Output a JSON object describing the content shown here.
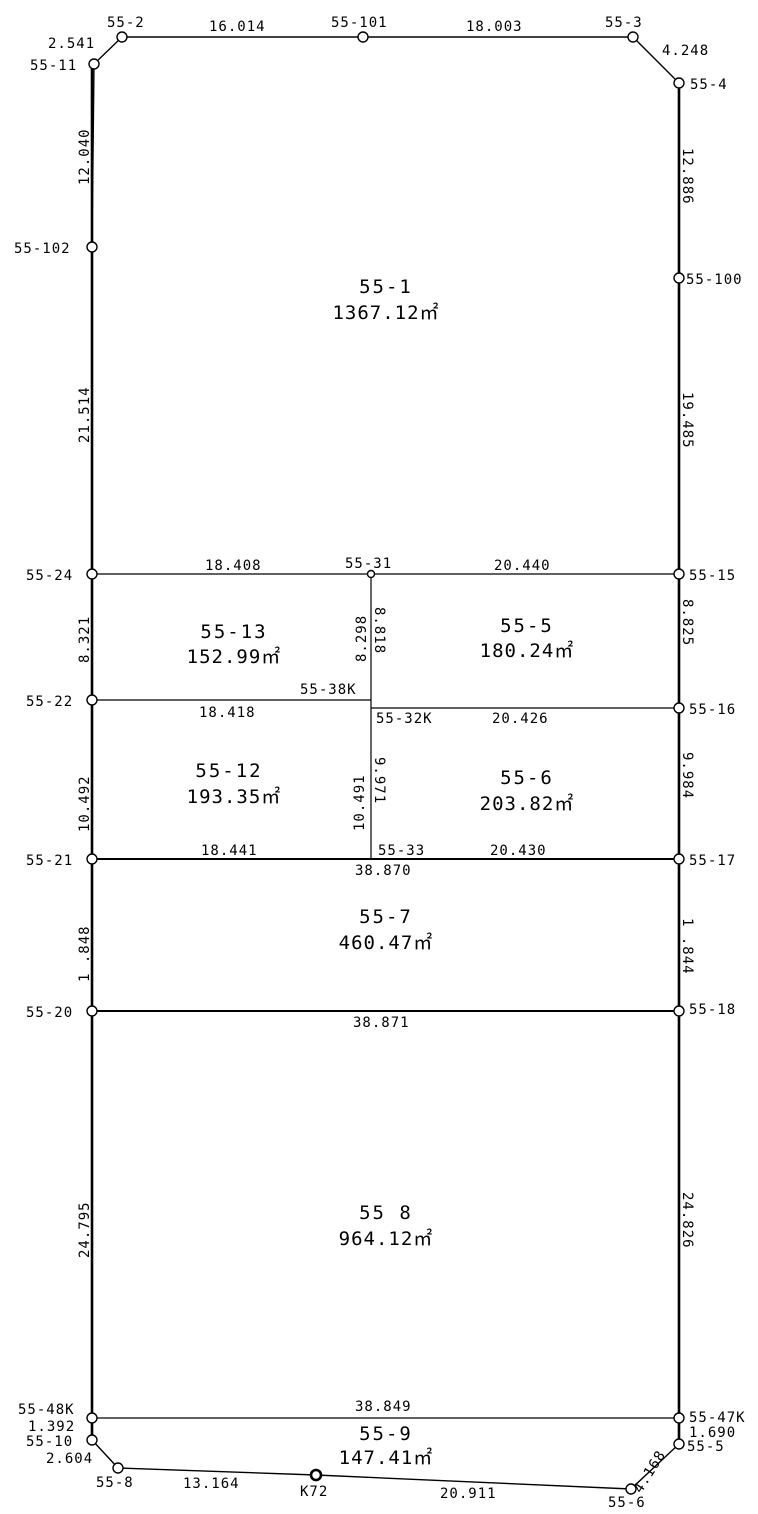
{
  "points": {
    "p55_2": "55-2",
    "p55_101": "55-101",
    "p55_3": "55-3",
    "p55_11": "55-11",
    "p55_4": "55-4",
    "p55_102": "55-102",
    "p55_100": "55-100",
    "p55_24": "55-24",
    "p55_31": "55-31",
    "p55_15": "55-15",
    "p55_38K": "55-38K",
    "p55_22": "55-22",
    "p55_32K": "55-32K",
    "p55_16": "55-16",
    "p55_21": "55-21",
    "p55_33": "55-33",
    "p55_17": "55-17",
    "p55_20": "55-20",
    "p55_18": "55-18",
    "p55_48K": "55-48K",
    "p55_47K": "55-47K",
    "p55_10": "55-10",
    "p55_5": "55-5",
    "p55_8": "55-8",
    "pK72": "K72",
    "p55_6": "55-6"
  },
  "dimensions": {
    "top_left_diag": "2.541",
    "top_a": "16.014",
    "top_b": "18.003",
    "top_right_diag": "4.248",
    "left_1": "12.040",
    "left_2": "21.514",
    "right_1": "12.886",
    "right_2": "19.485",
    "h_24_31": "18.408",
    "h_31_15": "20.440",
    "v_24_22": "8.321",
    "v_31_38K": "8.298",
    "v_31_32K": "8.818",
    "v_15_16": "8.825",
    "h_22_38K": "18.418",
    "h_32K_16": "20.426",
    "v_22_21": "10.492",
    "v_38K_33": "10.491",
    "v_32K_33": "9.971",
    "v_16_17": "9.984",
    "h_21_33": "18.441",
    "h_33_17": "20.430",
    "h_21_17": "38.870",
    "v_21_20": "1 .848",
    "v_17_18": "1 .844",
    "h_20_18": "38.871",
    "v_20_48K": "24.795",
    "v_18_47K": "24.826",
    "h_48K_47K": "38.849",
    "v_48K_10": "1.392",
    "v_47K_5": "1.690",
    "bl_diag": "2.604",
    "br_diag": "4.168",
    "bottom_a": "13.164",
    "bottom_b": "20.911"
  },
  "lots": [
    {
      "name": "55-1",
      "area": "1367.12㎡"
    },
    {
      "name": "55-13",
      "area": "152.99㎡"
    },
    {
      "name": "55-5",
      "area": "180.24㎡"
    },
    {
      "name": "55-12",
      "area": "193.35㎡"
    },
    {
      "name": "55-6",
      "area": "203.82㎡"
    },
    {
      "name": "55-7",
      "area": "460.47㎡"
    },
    {
      "name": "55 8",
      "area": "964.12㎡"
    },
    {
      "name": "55-9",
      "area": "147.41㎡"
    }
  ]
}
